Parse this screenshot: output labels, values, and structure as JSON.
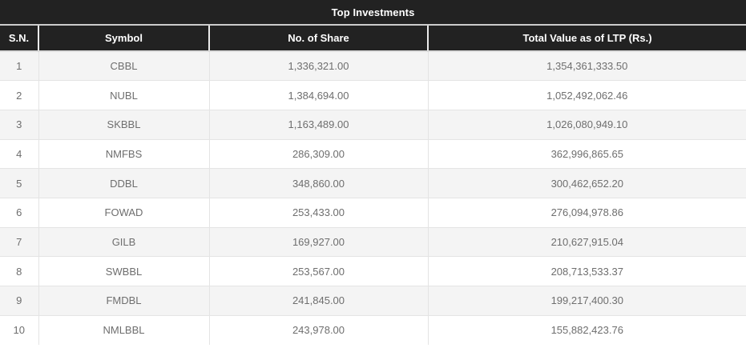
{
  "table": {
    "title": "Top Investments",
    "columns": [
      "S.N.",
      "Symbol",
      "No. of Share",
      "Total Value as of LTP (Rs.)"
    ],
    "rows": [
      {
        "sn": "1",
        "symbol": "CBBL",
        "shares": "1,336,321.00",
        "total_value": "1,354,361,333.50"
      },
      {
        "sn": "2",
        "symbol": "NUBL",
        "shares": "1,384,694.00",
        "total_value": "1,052,492,062.46"
      },
      {
        "sn": "3",
        "symbol": "SKBBL",
        "shares": "1,163,489.00",
        "total_value": "1,026,080,949.10"
      },
      {
        "sn": "4",
        "symbol": "NMFBS",
        "shares": "286,309.00",
        "total_value": "362,996,865.65"
      },
      {
        "sn": "5",
        "symbol": "DDBL",
        "shares": "348,860.00",
        "total_value": "300,462,652.20"
      },
      {
        "sn": "6",
        "symbol": "FOWAD",
        "shares": "253,433.00",
        "total_value": "276,094,978.86"
      },
      {
        "sn": "7",
        "symbol": "GILB",
        "shares": "169,927.00",
        "total_value": "210,627,915.04"
      },
      {
        "sn": "8",
        "symbol": "SWBBL",
        "shares": "253,567.00",
        "total_value": "208,713,533.37"
      },
      {
        "sn": "9",
        "symbol": "FMDBL",
        "shares": "241,845.00",
        "total_value": "199,217,400.30"
      },
      {
        "sn": "10",
        "symbol": "NMLBBL",
        "shares": "243,978.00",
        "total_value": "155,882,423.76"
      }
    ]
  },
  "colors": {
    "header_bg": "#222222",
    "header_text": "#ffffff",
    "row_alt_bg": "#f4f4f4",
    "row_bg": "#ffffff",
    "border": "#e4e4e4",
    "body_text": "#6e6e6e"
  }
}
